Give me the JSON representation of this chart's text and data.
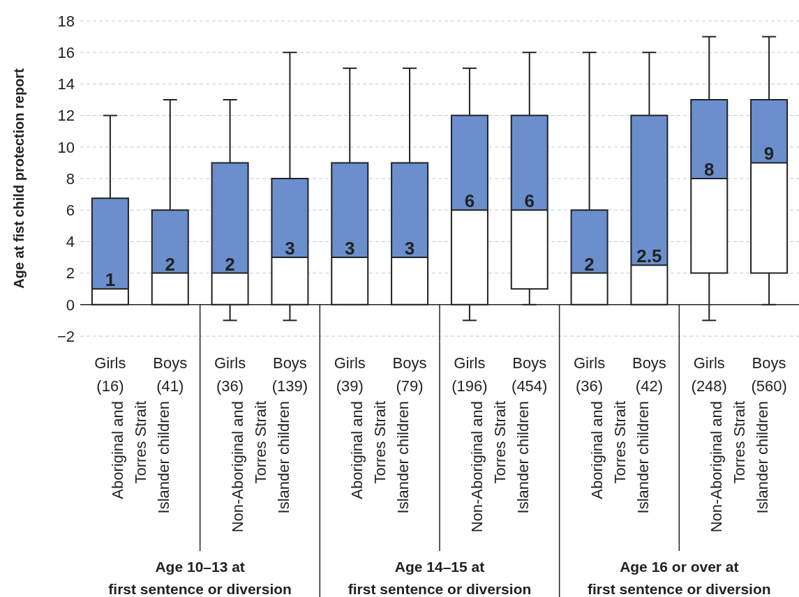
{
  "chart_data": {
    "type": "box",
    "ylabel": "Age at fist child protection report",
    "categories": [
      "Girls\n(16)",
      "Boys\n(41)",
      "Girls\n(36)",
      "Boys\n(139)",
      "Girls\n(39)",
      "Boys\n(79)",
      "Girls\n(196)",
      "Boys\n(454)",
      "Girls\n(36)",
      "Boys\n(42)",
      "Girls\n(248)",
      "Boys\n(560)"
    ],
    "color": "#6a8fcc",
    "boxes": [
      {
        "low": 0,
        "q1": 0,
        "median": 1,
        "q3": 6.75,
        "high": 12
      },
      {
        "low": 0,
        "q1": 0,
        "median": 2,
        "q3": 6,
        "high": 13
      },
      {
        "low": -1,
        "q1": 0,
        "median": 2,
        "q3": 9,
        "high": 13
      },
      {
        "low": -1,
        "q1": 0,
        "median": 3,
        "q3": 8,
        "high": 16
      },
      {
        "low": 0,
        "q1": 0,
        "median": 3,
        "q3": 9,
        "high": 15
      },
      {
        "low": 0,
        "q1": 0,
        "median": 3,
        "q3": 9,
        "high": 15
      },
      {
        "low": -1,
        "q1": 0,
        "median": 6,
        "q3": 12,
        "high": 15
      },
      {
        "low": 0,
        "q1": 1,
        "median": 6,
        "q3": 12,
        "high": 16
      },
      {
        "low": 0,
        "q1": 0,
        "median": 2,
        "q3": 6,
        "high": 16
      },
      {
        "low": 0,
        "q1": 0,
        "median": 2.5,
        "q3": 12,
        "high": 16
      },
      {
        "low": -1,
        "q1": 2,
        "median": 8,
        "q3": 13,
        "high": 17
      },
      {
        "low": 0,
        "q1": 2,
        "median": 9,
        "q3": 13,
        "high": 17
      }
    ],
    "value_labels": [
      "1",
      "2",
      "2",
      "3",
      "3",
      "3",
      "6",
      "6",
      "2",
      "2.5",
      "8",
      "9"
    ],
    "ylim": [
      -2,
      18
    ],
    "yticks": [
      {
        "value": -2,
        "label": "−2"
      },
      0,
      2,
      4,
      6,
      8,
      10,
      12,
      14,
      16,
      18
    ],
    "grid": "y",
    "annotations": [
      "Aboriginal and\nTorres Strait\nIslander children",
      "Non-Aboriginal and\nTorres Strait\nIslander children",
      "Aboriginal and\nTorres Strait\nIslander children",
      "Non-Aboriginal and\nTorres Strait\nIslander children",
      "Aboriginal and\nTorres Strait\nIslander children",
      "Non-Aboriginal and\nTorres Strait\nIslander children",
      "Age 10–13 at\nfirst sentence or diversion",
      "Age 14–15 at\nfirst sentence or diversion",
      "Age 16 or over at\nfirst sentence or diversion"
    ]
  }
}
